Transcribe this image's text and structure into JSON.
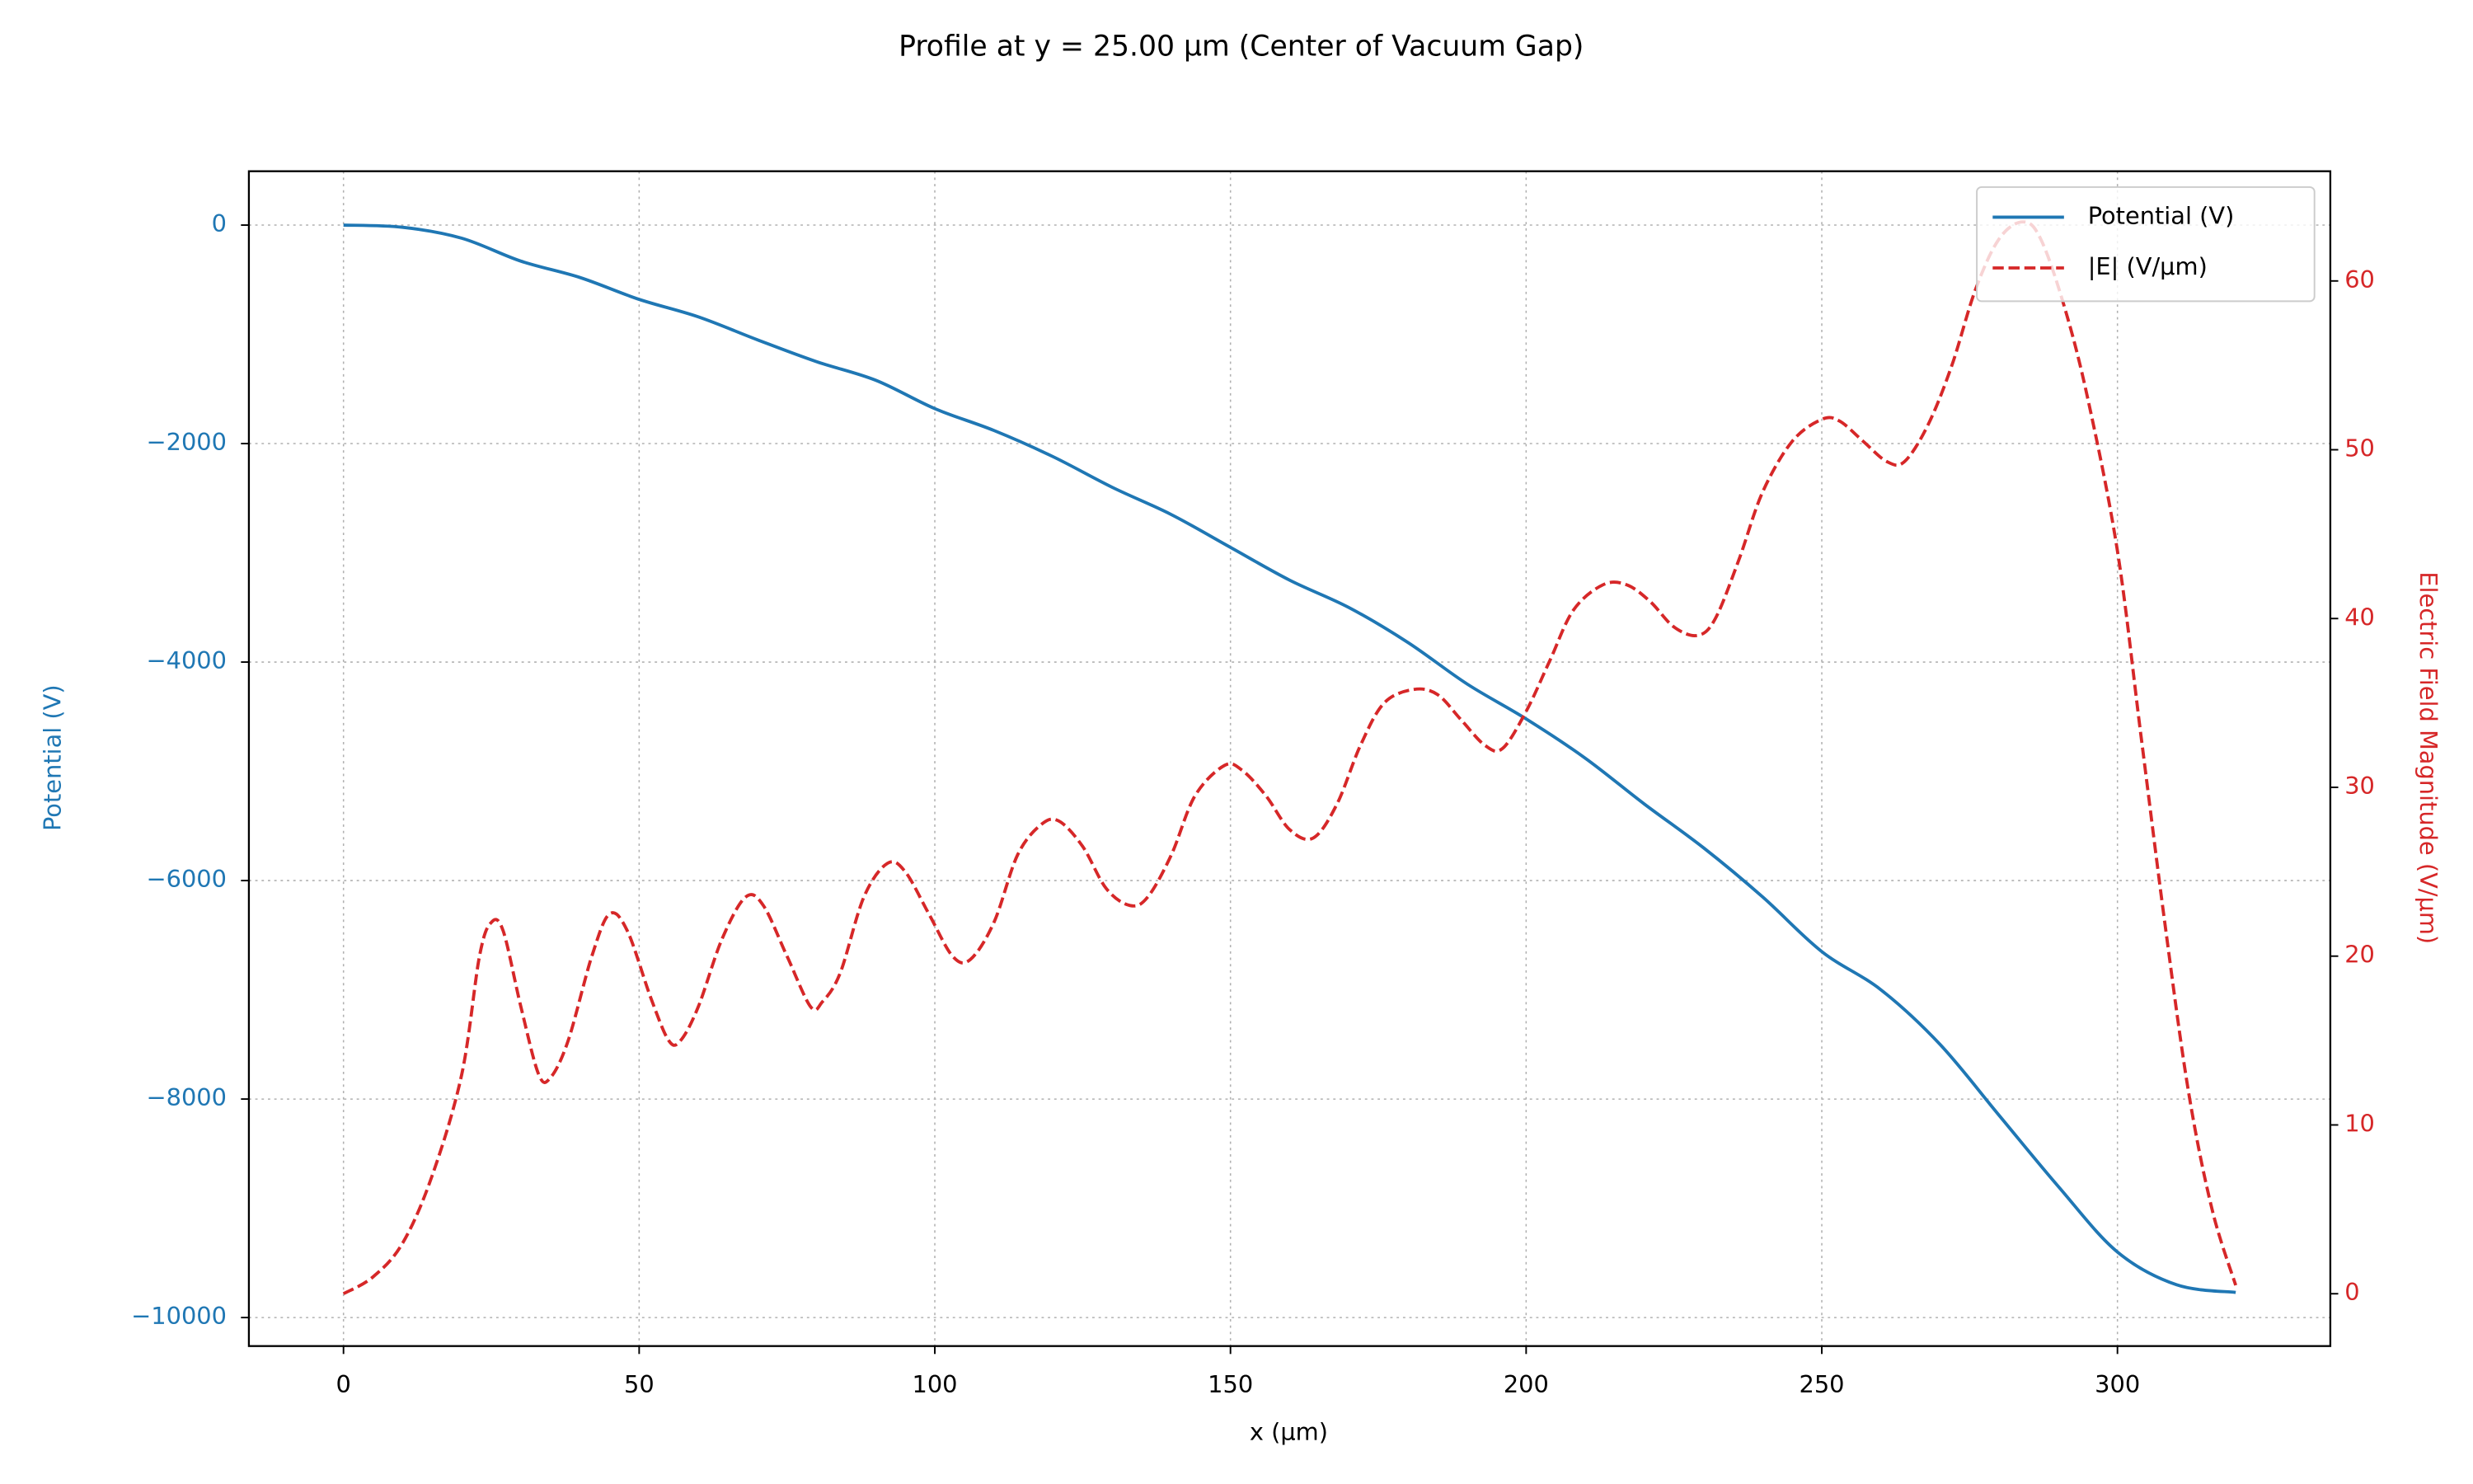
{
  "chart_data": {
    "type": "line",
    "title": "Profile at y = 25.00 µm (Center of Vacuum Gap)",
    "x_label": "x (µm)",
    "y_label": "Potential (V)",
    "y2_label": "Electric Field Magnitude (V/µm)",
    "xlim": [
      -16,
      336
    ],
    "xticks": [
      0,
      50,
      100,
      150,
      200,
      250,
      300
    ],
    "ylim": [
      -10261,
      493
    ],
    "yticks": [
      {
        "value": -10000,
        "label": "−10000"
      },
      {
        "value": -8000,
        "label": "−8000"
      },
      {
        "value": -6000,
        "label": "−6000"
      },
      {
        "value": -4000,
        "label": "−4000"
      },
      {
        "value": -2000,
        "label": "−2000"
      },
      0
    ],
    "y2lim": [
      -3.1,
      66.5
    ],
    "y2ticks": [
      0,
      10,
      20,
      30,
      40,
      50,
      60
    ],
    "grid": true,
    "legend": "upper right",
    "series": [
      {
        "name": "Potential (V)",
        "color": "#1f77b4",
        "style": "solid",
        "x": [
          0,
          10,
          20,
          30,
          40,
          50,
          60,
          70,
          80,
          90,
          100,
          110,
          120,
          130,
          140,
          150,
          160,
          170,
          180,
          190,
          200,
          210,
          220,
          230,
          240,
          250,
          260,
          270,
          280,
          290,
          300,
          310,
          320
        ],
        "values": [
          0,
          -20,
          -120,
          -330,
          -480,
          -680,
          -840,
          -1050,
          -1250,
          -1420,
          -1680,
          -1880,
          -2120,
          -2400,
          -2650,
          -2950,
          -3250,
          -3500,
          -3820,
          -4200,
          -4520,
          -4880,
          -5300,
          -5700,
          -6150,
          -6650,
          -7000,
          -7500,
          -8150,
          -8800,
          -9400,
          -9700,
          -9770
        ]
      },
      {
        "name": "|E| (V/µm)",
        "color": "#d62728",
        "style": "dashed",
        "axis": "y2",
        "x": [
          0,
          5,
          10,
          15,
          20,
          23,
          25,
          27,
          30,
          33,
          35,
          38,
          42,
          45,
          48,
          52,
          55,
          57,
          60,
          64,
          68,
          71,
          75,
          79,
          81,
          84,
          88,
          92,
          95,
          99,
          103,
          106,
          110,
          114,
          118,
          121,
          125,
          129,
          133,
          136,
          140,
          144,
          149,
          152,
          156,
          160,
          164,
          168,
          172,
          176,
          181,
          185,
          189,
          193,
          196,
          200,
          204,
          208,
          213,
          217,
          221,
          225,
          229,
          232,
          236,
          240,
          245,
          250,
          253,
          257,
          261,
          264,
          268,
          272,
          276,
          280,
          284,
          287,
          291,
          295,
          300,
          304,
          308,
          312,
          316,
          320
        ],
        "values": [
          0,
          1,
          3,
          7,
          13,
          20,
          22,
          21.5,
          17,
          13,
          12.8,
          15,
          20,
          22.5,
          21.5,
          17.5,
          15,
          15,
          17,
          21,
          23.5,
          23,
          20,
          17,
          17.3,
          19,
          23.5,
          25.5,
          25,
          22.5,
          20,
          19.8,
          22,
          26,
          27.8,
          28,
          26.5,
          24,
          23,
          23.5,
          26,
          29.5,
          31.3,
          31,
          29.5,
          27.5,
          27,
          29,
          32.5,
          35,
          35.8,
          35.5,
          34,
          32.5,
          32.3,
          34.5,
          37.5,
          40.5,
          42,
          42,
          41,
          39.5,
          39,
          40,
          43.5,
          47.5,
          50.5,
          51.8,
          51.7,
          50.5,
          49.3,
          49.3,
          51.5,
          55,
          59.5,
          62.5,
          63.5,
          62.5,
          58.5,
          53,
          44,
          33,
          22,
          12,
          5,
          0.5
        ]
      }
    ]
  }
}
